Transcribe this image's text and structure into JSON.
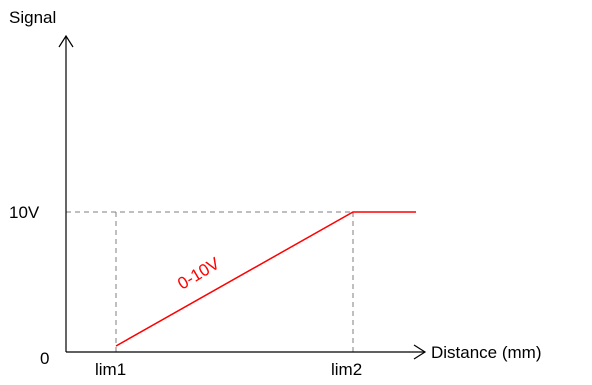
{
  "chart_data": {
    "type": "line",
    "ylabel": "Signal",
    "xlabel": "Distance (mm)",
    "x_ticks": [
      "lim1",
      "lim2"
    ],
    "y_ticks": [
      "0",
      "10V"
    ],
    "series": [
      {
        "name": "0-10V",
        "points": [
          {
            "x": "lim1",
            "y": 0
          },
          {
            "x": "lim2",
            "y": 10
          },
          {
            "x": "beyond lim2",
            "y": 10
          }
        ]
      }
    ],
    "reference_lines": [
      {
        "axis": "y",
        "value": "10V"
      },
      {
        "axis": "x",
        "value": "lim1"
      },
      {
        "axis": "x",
        "value": "lim2"
      }
    ],
    "colors": {
      "series": "#ff0000",
      "axes": "#000000",
      "guides": "#7f7f7f"
    },
    "grid": false
  }
}
